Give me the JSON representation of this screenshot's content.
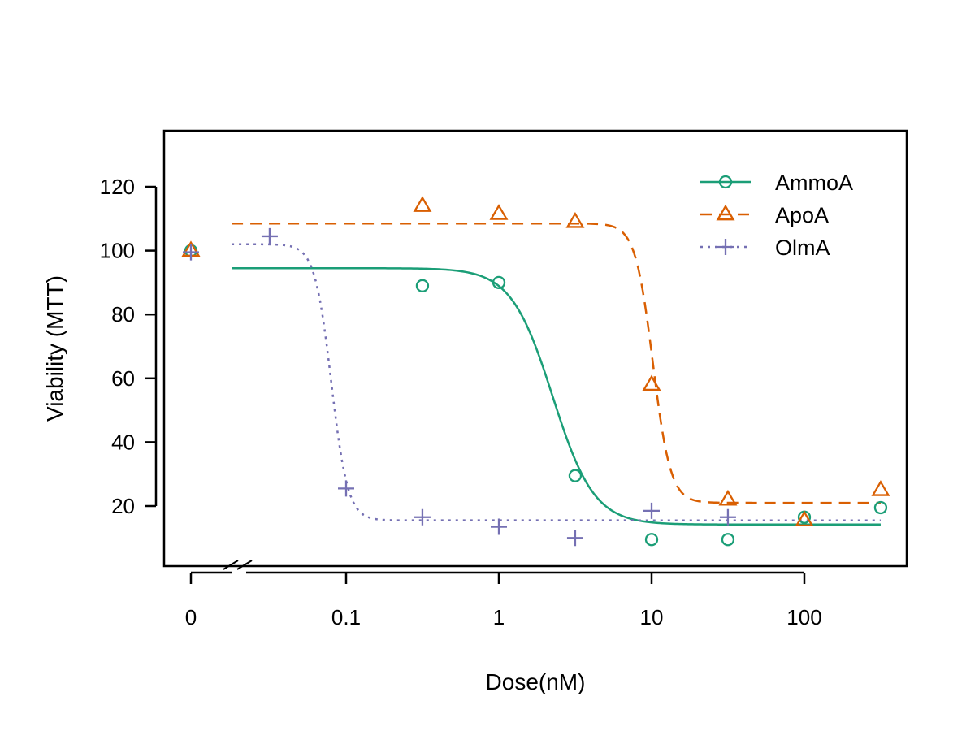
{
  "chart_data": {
    "type": "scatter",
    "title": "",
    "xlabel": "Dose(nM)",
    "ylabel": "Viability (MTT)",
    "x_scale": "log10",
    "x_axis_break": true,
    "x_ticks": [
      {
        "value": 0,
        "label": "0"
      },
      {
        "value": 0.1,
        "label": "0.1"
      },
      {
        "value": 1,
        "label": "1"
      },
      {
        "value": 10,
        "label": "10"
      },
      {
        "value": 100,
        "label": "100"
      }
    ],
    "y_ticks": [
      20,
      40,
      60,
      80,
      100,
      120
    ],
    "ylim": [
      0,
      135
    ],
    "grid": false,
    "legend_position": "top-right",
    "series": [
      {
        "name": "AmmoA",
        "color": "#1b9e77",
        "marker": "circle",
        "line": "solid",
        "points": [
          {
            "x": 0,
            "y": 100
          },
          {
            "x": 0.316,
            "y": 89
          },
          {
            "x": 1,
            "y": 90
          },
          {
            "x": 3.16,
            "y": 29.5
          },
          {
            "x": 10,
            "y": 9.5
          },
          {
            "x": 31.6,
            "y": 9.5
          },
          {
            "x": 100,
            "y": 16.5
          },
          {
            "x": 316,
            "y": 19.5
          }
        ],
        "fit": {
          "top": 94.5,
          "bottom": 14.2,
          "ec50": 2.25,
          "hill": 3.2,
          "x_start": 0.0178,
          "x_end": 316
        }
      },
      {
        "name": "ApoA",
        "color": "#d95f02",
        "marker": "triangle",
        "line": "dashed",
        "points": [
          {
            "x": 0,
            "y": 100
          },
          {
            "x": 0.316,
            "y": 114
          },
          {
            "x": 1,
            "y": 111.5
          },
          {
            "x": 3.16,
            "y": 109
          },
          {
            "x": 10,
            "y": 58
          },
          {
            "x": 31.6,
            "y": 22
          },
          {
            "x": 100,
            "y": 15.5
          },
          {
            "x": 316,
            "y": 25
          }
        ],
        "fit": {
          "top": 108.5,
          "bottom": 21,
          "ec50": 10.2,
          "hill": 7.5,
          "x_start": 0.0178,
          "x_end": 316
        }
      },
      {
        "name": "OlmA",
        "color": "#7570b3",
        "marker": "plus",
        "line": "dotted",
        "points": [
          {
            "x": 0,
            "y": 99.5
          },
          {
            "x": 0.0316,
            "y": 104.5
          },
          {
            "x": 0.1,
            "y": 25.5
          },
          {
            "x": 0.316,
            "y": 16.5
          },
          {
            "x": 1,
            "y": 13.5
          },
          {
            "x": 3.16,
            "y": 10
          },
          {
            "x": 10,
            "y": 18.5
          },
          {
            "x": 31.6,
            "y": 16.5
          }
        ],
        "fit": {
          "top": 102,
          "bottom": 15.5,
          "ec50": 0.08,
          "hill": 8,
          "x_start": 0.0178,
          "x_end": 316
        }
      }
    ]
  }
}
